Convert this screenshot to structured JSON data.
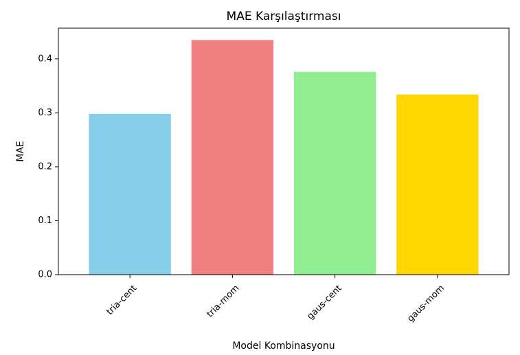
{
  "chart_data": {
    "type": "bar",
    "title": "MAE Karşılaştırması",
    "xlabel": "Model Kombinasyonu",
    "ylabel": "MAE",
    "categories": [
      "tria-cent",
      "tria-mom",
      "gaus-cent",
      "gaus-mom"
    ],
    "values": [
      0.298,
      0.435,
      0.376,
      0.334
    ],
    "colors": [
      "#87ceeb",
      "#f08080",
      "#90ee90",
      "#ffd700"
    ],
    "ylim": [
      0,
      0.457
    ],
    "yticks": [
      0.0,
      0.1,
      0.2,
      0.3,
      0.4
    ],
    "ytick_labels": [
      "0.0",
      "0.1",
      "0.2",
      "0.3",
      "0.4"
    ],
    "xtick_rotation": 45,
    "grid": false,
    "legend": "none"
  }
}
